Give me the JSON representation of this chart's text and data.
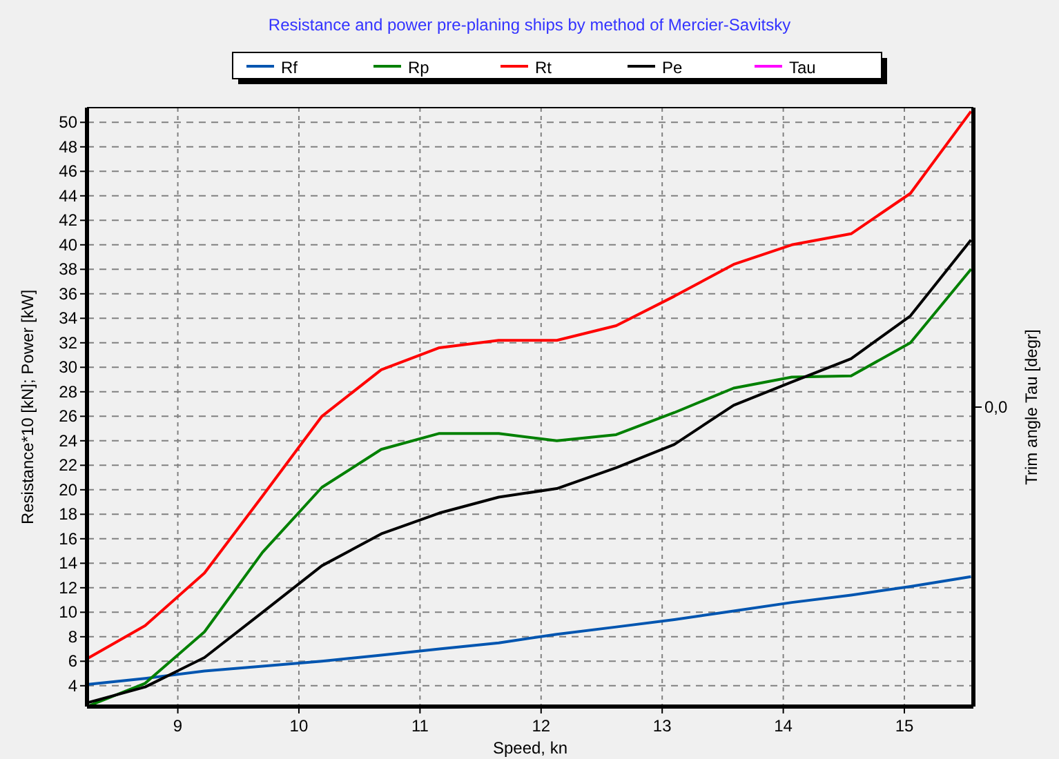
{
  "chart_data": {
    "type": "line",
    "title": "Resistance and power pre-planing ships by method of Mercier-Savitsky",
    "xlabel": "Speed, kn",
    "ylabel": "Resistance*10 [kN]; Power [kW]",
    "y2label": "Trim angle Tau [degr]",
    "x": [
      8.25,
      8.73,
      9.22,
      9.7,
      10.19,
      10.68,
      11.16,
      11.65,
      12.13,
      12.62,
      13.1,
      13.59,
      14.07,
      14.56,
      15.05,
      15.55
    ],
    "series": [
      {
        "name": "Rf",
        "color": "#0055b0",
        "values": [
          4.1,
          4.6,
          5.2,
          5.6,
          6.0,
          6.5,
          7.0,
          7.5,
          8.2,
          8.8,
          9.4,
          10.1,
          10.8,
          11.4,
          12.1,
          12.9
        ]
      },
      {
        "name": "Rp",
        "color": "#008000",
        "values": [
          2.3,
          4.2,
          8.4,
          14.9,
          20.2,
          23.3,
          24.6,
          24.6,
          24.0,
          24.5,
          26.3,
          28.3,
          29.2,
          29.3,
          32.0,
          38.0
        ]
      },
      {
        "name": "Rt",
        "color": "#ff0000",
        "values": [
          6.2,
          8.9,
          13.2,
          19.5,
          26.0,
          29.8,
          31.6,
          32.2,
          32.2,
          33.4,
          35.8,
          38.4,
          40.0,
          40.9,
          44.2,
          50.9
        ]
      },
      {
        "name": "Pe",
        "color": "#000000",
        "values": [
          2.6,
          3.9,
          6.3,
          10.0,
          13.8,
          16.4,
          18.1,
          19.4,
          20.1,
          21.8,
          23.7,
          26.9,
          28.8,
          30.7,
          34.2,
          40.4
        ]
      },
      {
        "name": "Tau",
        "color": "#ff00ff",
        "values": [
          null,
          null,
          null,
          null,
          null,
          null,
          null,
          null,
          null,
          null,
          null,
          null,
          null,
          null,
          null,
          null
        ]
      }
    ],
    "xlim": [
      8.25,
      15.57
    ],
    "ylim": [
      2.3,
      51.2
    ],
    "annotations": [
      "0,0"
    ],
    "xticks": [
      9,
      10,
      11,
      12,
      13,
      14,
      15
    ],
    "yticks": [
      4,
      6,
      8,
      10,
      12,
      14,
      16,
      18,
      20,
      22,
      24,
      26,
      28,
      30,
      32,
      34,
      36,
      38,
      40,
      42,
      44,
      46,
      48,
      50
    ],
    "grid": true,
    "legend": "top",
    "line_style": "solid",
    "marker": "none"
  }
}
